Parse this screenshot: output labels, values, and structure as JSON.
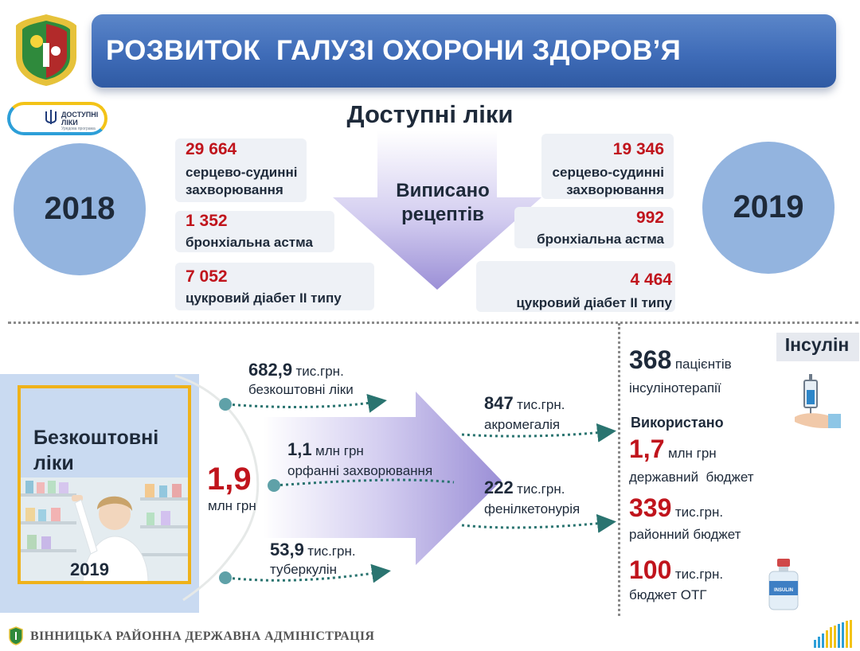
{
  "header": {
    "title": "РОЗВИТОК  ГАЛУЗІ ОХОРОНИ ЗДОРОВ’Я",
    "subtitle": "Доступні ліки"
  },
  "program_logo": {
    "line1": "ДОСТУПНІ",
    "line2": "ЛІКИ",
    "sub": "Урядова програма"
  },
  "prescriptions": {
    "center_label_1": "Виписано",
    "center_label_2": "рецептів",
    "y2018": {
      "year": "2018",
      "items": [
        {
          "value": "29 664",
          "label_1": "серцево-судинні",
          "label_2": "захворювання"
        },
        {
          "value": "1 352",
          "label_1": "бронхіальна астма",
          "label_2": ""
        },
        {
          "value": "7 052",
          "label_1": "цукровий діабет ІІ типу",
          "label_2": ""
        }
      ]
    },
    "y2019": {
      "year": "2019",
      "items": [
        {
          "value": "19 346",
          "label_1": "серцево-судинні",
          "label_2": "захворювання"
        },
        {
          "value": "992",
          "label_1": "бронхіальна астма",
          "label_2": ""
        },
        {
          "value": "4 464",
          "label_1": "цукровий діабет ІІ типу",
          "label_2": ""
        }
      ]
    }
  },
  "free_medicines": {
    "title_1": "Безкоштовні",
    "title_2": "ліки",
    "year": "2019",
    "total_value": "1,9",
    "total_unit": "млн грн",
    "left_items": [
      {
        "value": "682,9",
        "unit": "тис.грн.",
        "desc": "безкоштовні ліки"
      },
      {
        "value": "1,1",
        "unit": "млн грн",
        "desc": "орфанні захворювання"
      },
      {
        "value": "53,9",
        "unit": "тис.грн.",
        "desc": "туберкулін"
      }
    ],
    "right_items": [
      {
        "value": "847",
        "unit": "тис.грн.",
        "desc": "акромегалія"
      },
      {
        "value": "222",
        "unit": "тис.грн.",
        "desc": "фенілкетонурія"
      }
    ]
  },
  "insulin": {
    "title": "Інсулін",
    "patients_value": "368",
    "patients_text_1": "пацієнтів",
    "patients_text_2": "інсулінотерапії",
    "used_label": "Використано",
    "items": [
      {
        "value": "1,7",
        "unit": "млн грн",
        "desc": "державний  бюджет"
      },
      {
        "value": "339",
        "unit": "тис.грн.",
        "desc": "районний бюджет"
      },
      {
        "value": "100",
        "unit": "тис.грн.",
        "desc": "бюджет ОТГ"
      }
    ],
    "vial_label": "INSULIN"
  },
  "footer": {
    "text": "ВІННИЦЬКА РАЙОННА ДЕРЖАВНА АДМІНІСТРАЦІЯ"
  },
  "colors": {
    "accent_red": "#c0141c",
    "banner_blue": "#3f6cb8",
    "circle_blue": "#93b4df",
    "arrow_purple": "#9b8fd6",
    "teal_dot": "#5fa1a8",
    "gold_frame": "#efb21a"
  }
}
